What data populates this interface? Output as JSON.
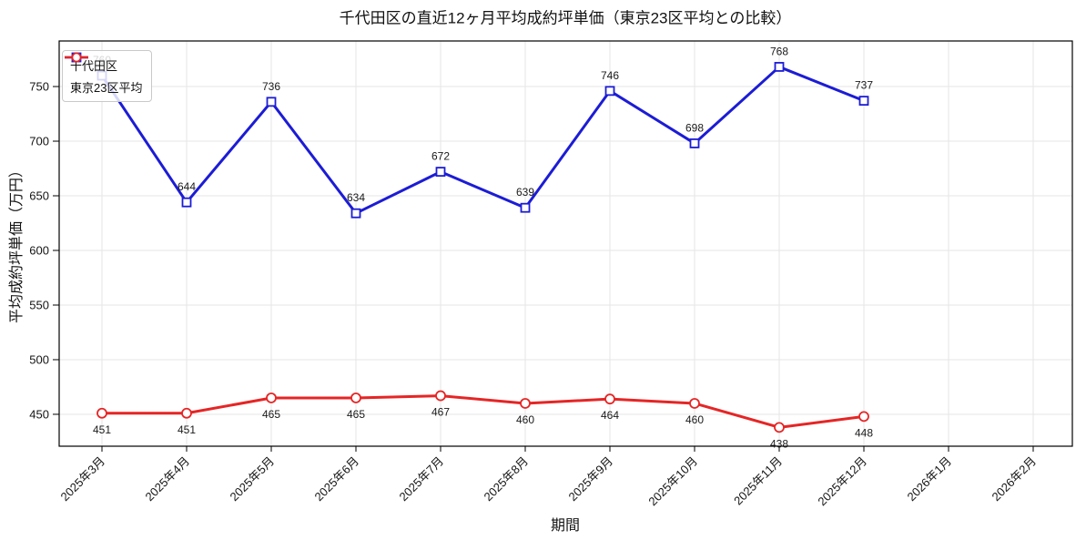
{
  "chart_data": {
    "type": "line",
    "title": "千代田区の直近12ヶ月平均成約坪単価（東京23区平均との比較）",
    "xlabel": "期間",
    "ylabel": "平均成約坪単価（万円）",
    "categories": [
      "2025年3月",
      "2025年4月",
      "2025年5月",
      "2025年6月",
      "2025年7月",
      "2025年8月",
      "2025年9月",
      "2025年10月",
      "2025年11月",
      "2025年12月",
      "2026年1月",
      "2026年2月"
    ],
    "series": [
      {
        "name": "千代田区",
        "color": "#1c1cd6",
        "marker": "square",
        "values": [
          760,
          644,
          736,
          634,
          672,
          639,
          746,
          698,
          768,
          737,
          null,
          null
        ]
      },
      {
        "name": "東京23区平均",
        "color": "#e62525",
        "marker": "circle",
        "values": [
          451,
          451,
          465,
          465,
          467,
          460,
          464,
          460,
          438,
          448,
          null,
          null
        ]
      }
    ],
    "yticks": [
      450,
      500,
      550,
      600,
      650,
      700,
      750
    ],
    "ylim": [
      420.8,
      791.7
    ],
    "grid": true,
    "legend_position": "upper left",
    "grid_color": "#e6e6e6",
    "axis_color": "#000000",
    "text_color": "#141414"
  }
}
